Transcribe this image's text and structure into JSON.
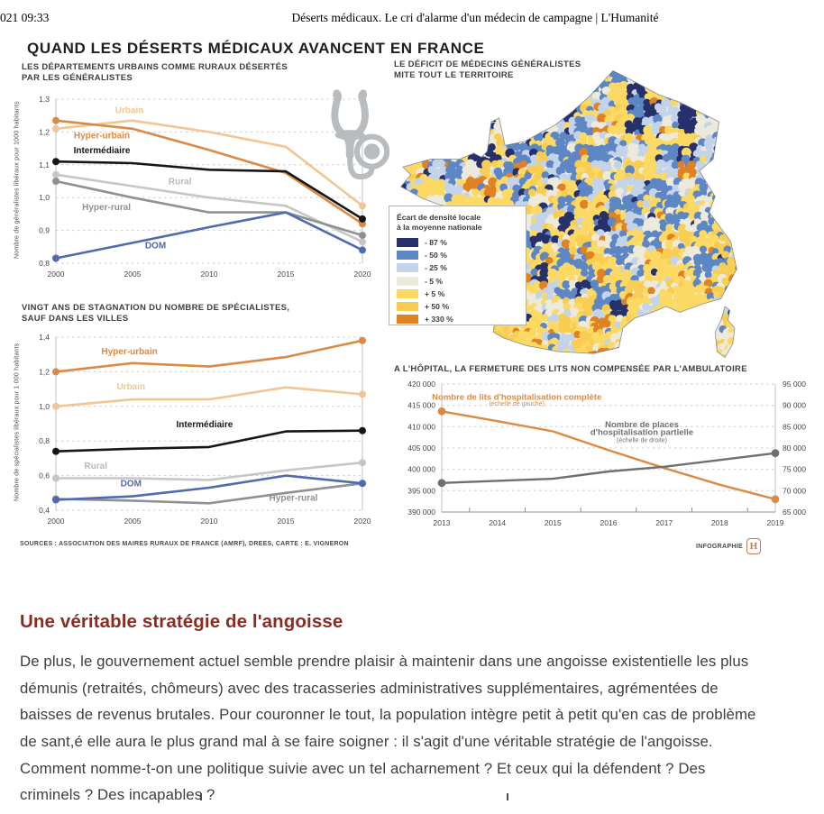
{
  "page_header": {
    "left": "021 09:33",
    "title": "Déserts médicaux. Le cri d'alarme d'un médecin de campagne | L'Humanité"
  },
  "infographic": {
    "title": "QUAND LES DÉSERTS MÉDICAUX AVANCENT EN FRANCE",
    "sources": "SOURCES : ASSOCIATION DES MAIRES RURAUX DE FRANCE (AMRF), DREES, CARTE : E. VIGNERON",
    "credit_label": "INFOGRAPHIE",
    "credit_logo_letter": "H",
    "map": {
      "title_line1": "LE DÉFICIT DE MÉDECINS GÉNÉRALISTES",
      "title_line2": "MITE TOUT LE TERRITOIRE",
      "legend": {
        "title_line1": "Écart de densité locale",
        "title_line2": "à la moyenne nationale",
        "items": [
          {
            "label": "- 87 %",
            "color": "#26316b"
          },
          {
            "label": "- 50 %",
            "color": "#5d86c4"
          },
          {
            "label": "- 25 %",
            "color": "#c3d3ea"
          },
          {
            "label": "- 5 %",
            "color": "#eeeadb"
          },
          {
            "label": "+ 5 %",
            "color": "#fbd963"
          },
          {
            "label": "+ 50 %",
            "color": "#f7ce52"
          },
          {
            "label": "+ 330 %",
            "color": "#e08122"
          }
        ]
      }
    }
  },
  "chart_data": [
    {
      "type": "line",
      "title_line1": "LES DÉPARTEMENTS URBAINS COMME RURAUX DÉSERTÉS",
      "title_line2": "PAR LES GÉNÉRALISTES",
      "ylabel": "Nombre de généralistes libéraux pour 1000 habitants",
      "x": [
        2000,
        2005,
        2010,
        2015,
        2020
      ],
      "x_tick_labels": [
        "2000",
        "2005",
        "2010",
        "2015",
        "2020"
      ],
      "ylim": [
        0.8,
        1.3
      ],
      "yticks": [
        0.8,
        0.9,
        1.0,
        1.1,
        1.2,
        1.3
      ],
      "ytick_labels": [
        "0,8",
        "0,9",
        "1,0",
        "1,1",
        "1,2",
        "1,3"
      ],
      "grid": "dashed",
      "series": [
        {
          "name": "Urbain",
          "color": "#f2c694",
          "values": [
            1.21,
            1.235,
            1.2,
            1.155,
            0.975
          ]
        },
        {
          "name": "Hyper-urbain",
          "color": "#da8a44",
          "values": [
            1.235,
            1.21,
            1.145,
            1.075,
            0.92
          ]
        },
        {
          "name": "Rural",
          "color": "#c6c6c6",
          "values": [
            1.07,
            1.035,
            1.0,
            0.975,
            0.865
          ]
        },
        {
          "name": "Hyper-rural",
          "color": "#8e9092",
          "values": [
            1.05,
            1.0,
            0.955,
            0.955,
            0.885
          ]
        },
        {
          "name": "DOM",
          "color": "#5169af",
          "values": [
            0.815,
            0.862,
            0.91,
            0.955,
            0.84
          ]
        },
        {
          "name": "Intermédiaire",
          "color": "#161616",
          "values": [
            1.11,
            1.105,
            1.085,
            1.08,
            0.935
          ]
        }
      ],
      "labels": [
        {
          "text": "Urbain",
          "x": 2004.8,
          "y": 1.258,
          "color": "#f2c694"
        },
        {
          "text": "Hyper-urbain",
          "x": 2003.0,
          "y": 1.18,
          "color": "#da8a44"
        },
        {
          "text": "Intermédiaire",
          "x": 2003.0,
          "y": 1.135,
          "color": "#161616"
        },
        {
          "text": "Rural",
          "x": 2008.1,
          "y": 1.04,
          "color": "#b9b9b9"
        },
        {
          "text": "Hyper-rural",
          "x": 2003.3,
          "y": 0.962,
          "color": "#8e9092"
        },
        {
          "text": "DOM",
          "x": 2006.5,
          "y": 0.845,
          "color": "#5169af"
        }
      ]
    },
    {
      "type": "line",
      "title_line1": "VINGT ANS DE STAGNATION DU NOMBRE DE SPÉCIALISTES,",
      "title_line2": "SAUF DANS LES VILLES",
      "ylabel": "Nombre de spécialistes libéraux pour 1 000 habitants",
      "x": [
        2000,
        2005,
        2010,
        2015,
        2020
      ],
      "x_tick_labels": [
        "2000",
        "2005",
        "2010",
        "2015",
        "2020"
      ],
      "ylim": [
        0.4,
        1.4
      ],
      "yticks": [
        0.4,
        0.6,
        0.8,
        1.0,
        1.2,
        1.4
      ],
      "ytick_labels": [
        "0,4",
        "0,6",
        "0,8",
        "1,0",
        "1,2",
        "1,4"
      ],
      "grid": "dashed",
      "series": [
        {
          "name": "Hyper-urbain",
          "color": "#da8a44",
          "values": [
            1.2,
            1.25,
            1.23,
            1.285,
            1.38
          ]
        },
        {
          "name": "Urbain",
          "color": "#f2c694",
          "values": [
            1.0,
            1.04,
            1.04,
            1.11,
            1.07
          ]
        },
        {
          "name": "Intermédiaire",
          "color": "#161616",
          "values": [
            0.74,
            0.755,
            0.765,
            0.855,
            0.86
          ]
        },
        {
          "name": "Rural",
          "color": "#c6c6c6",
          "values": [
            0.585,
            0.585,
            0.575,
            0.63,
            0.675
          ]
        },
        {
          "name": "Hyper-rural",
          "color": "#8e9092",
          "values": [
            0.465,
            0.455,
            0.44,
            0.5,
            0.555
          ]
        },
        {
          "name": "DOM",
          "color": "#5169af",
          "values": [
            0.46,
            0.48,
            0.53,
            0.6,
            0.555
          ]
        }
      ],
      "labels": [
        {
          "text": "Hyper-urbain",
          "x": 2004.8,
          "y": 1.3,
          "color": "#da8a44"
        },
        {
          "text": "Urbain",
          "x": 2004.9,
          "y": 1.098,
          "color": "#f2c694"
        },
        {
          "text": "Intermédiaire",
          "x": 2009.7,
          "y": 0.88,
          "color": "#161616"
        },
        {
          "text": "Rural",
          "x": 2002.6,
          "y": 0.64,
          "color": "#b9b9b9"
        },
        {
          "text": "DOM",
          "x": 2004.9,
          "y": 0.537,
          "color": "#5169af"
        },
        {
          "text": "Hyper-rural",
          "x": 2015.5,
          "y": 0.455,
          "color": "#8e9092"
        }
      ]
    },
    {
      "type": "line",
      "title": "A L'HÔPITAL, LA FERMETURE DES LITS NON COMPENSÉE PAR L'AMBULATOIRE",
      "x": [
        2013,
        2014,
        2015,
        2016,
        2017,
        2018,
        2019
      ],
      "x_tick_labels": [
        "2013",
        "2014",
        "2015",
        "2016",
        "2017",
        "2018",
        "2019"
      ],
      "ylim": [
        390000,
        420000
      ],
      "yticks": [
        390000,
        395000,
        400000,
        405000,
        410000,
        415000,
        420000
      ],
      "ytick_labels": [
        "390 000",
        "395 000",
        "400 000",
        "405 000",
        "410 000",
        "415 000",
        "420 000"
      ],
      "ylim_right": [
        65000,
        95000
      ],
      "yticks_right": [
        65000,
        70000,
        75000,
        80000,
        85000,
        90000,
        95000
      ],
      "ytick_labels_right": [
        "65 000",
        "70 000",
        "75 000",
        "80 000",
        "85 000",
        "90 000",
        "95 000"
      ],
      "grid": "dashed",
      "series": [
        {
          "name": "Nombre de lits d'hospitalisation complète (échelle de gauche)",
          "axis": "left",
          "color": "#da8a44",
          "values": [
            413600,
            411300,
            408900,
            404500,
            400300,
            396400,
            393000
          ]
        },
        {
          "name": "Nombre de places d'hospitalisation partielle (échelle de droite)",
          "axis": "right",
          "color": "#6d6f71",
          "values": [
            71800,
            72300,
            72800,
            74500,
            75600,
            77200,
            78800
          ]
        }
      ],
      "labels": [
        {
          "text": "Nombre de lits d'hospitalisation complète",
          "x": 2014.35,
          "y": 416300,
          "axis": "left",
          "color": "#da8a44",
          "size": 9.5
        },
        {
          "text": "(échelle de gauche)",
          "x": 2014.35,
          "y": 414900,
          "axis": "left",
          "color": "#da8a44",
          "size": 7,
          "bold": false
        },
        {
          "text": "Nombre de places",
          "x": 2016.6,
          "y": 84900,
          "axis": "right",
          "color": "#6d6f71",
          "size": 9.5
        },
        {
          "text": "d'hospitalisation partielle",
          "x": 2016.6,
          "y": 83100,
          "axis": "right",
          "color": "#6d6f71",
          "size": 9.5
        },
        {
          "text": "(échelle de droite)",
          "x": 2016.6,
          "y": 81400,
          "axis": "right",
          "color": "#6d6f71",
          "size": 7,
          "bold": false
        }
      ]
    }
  ],
  "article": {
    "heading": "Une véritable stratégie de l'angoisse",
    "heading_color": "#8c2b22",
    "paragraph": "De plus, le gouvernement actuel semble prendre plaisir à maintenir dans une angoisse existentielle les plus démunis (retraités, chômeurs) avec des tracasseries administratives supplémentaires, agrémentées de baisses de revenus brutales. Pour couronner le tout, la population intègre petit à petit qu'en cas de problème de sant,é elle aura le plus grand mal à se faire soigner : il s'agit d'une véritable stratégie de l'angoisse. Comment nomme-t-on une politique suivie avec un tel acharnement ? Et ceux qui la défendent ? Des criminels ? Des incapables ?"
  }
}
